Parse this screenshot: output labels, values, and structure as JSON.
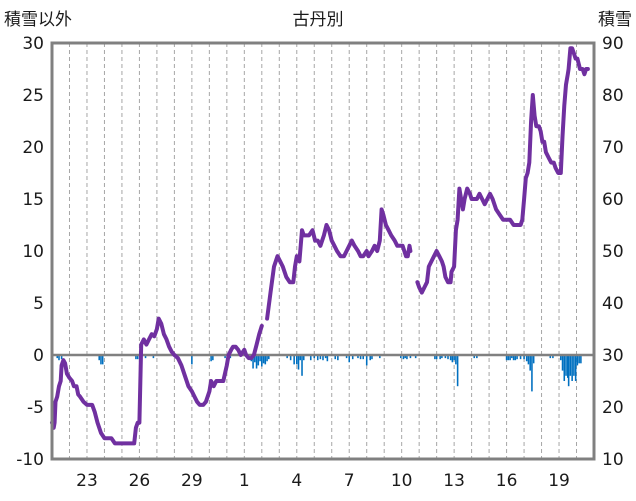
{
  "chart_data": {
    "type": "line",
    "title": "古丹別",
    "left_axis_label": "積雪以外",
    "right_axis_label": "積雪",
    "left_ylim": [
      -10,
      30
    ],
    "left_ticks": [
      30,
      25,
      20,
      15,
      10,
      5,
      0,
      -5,
      -10
    ],
    "right_ylim": [
      10,
      90
    ],
    "right_ticks": [
      90,
      80,
      70,
      60,
      50,
      40,
      30,
      20,
      10
    ],
    "x_range": [
      0,
      31
    ],
    "x_ticks": [
      {
        "x": 2,
        "label": "23"
      },
      {
        "x": 5,
        "label": "26"
      },
      {
        "x": 8,
        "label": "29"
      },
      {
        "x": 11,
        "label": "1"
      },
      {
        "x": 14,
        "label": "4"
      },
      {
        "x": 17,
        "label": "7"
      },
      {
        "x": 20,
        "label": "10"
      },
      {
        "x": 23,
        "label": "13"
      },
      {
        "x": 26,
        "label": "16"
      },
      {
        "x": 29,
        "label": "19"
      }
    ],
    "grid": "vertical-dashed",
    "colors": {
      "line": "#7030a0",
      "bars": "#0070c0",
      "zero_line": "#808080",
      "frame": "#808080"
    },
    "series": [
      {
        "axis": "left",
        "points": [
          [
            0.0,
            -6.5
          ],
          [
            0.1,
            -7.0
          ],
          [
            0.15,
            -6.5
          ],
          [
            0.2,
            -4.5
          ],
          [
            0.3,
            -4.0
          ],
          [
            0.4,
            -3.0
          ],
          [
            0.5,
            -2.5
          ],
          [
            0.55,
            -1.0
          ],
          [
            0.65,
            -0.5
          ],
          [
            0.75,
            -0.8
          ],
          [
            0.85,
            -1.8
          ],
          [
            1.0,
            -2.2
          ],
          [
            1.15,
            -2.5
          ],
          [
            1.25,
            -3.0
          ],
          [
            1.4,
            -3.0
          ],
          [
            1.5,
            -3.8
          ],
          [
            1.6,
            -4.0
          ],
          [
            1.8,
            -4.5
          ],
          [
            2.0,
            -4.8
          ],
          [
            2.3,
            -4.8
          ],
          [
            2.45,
            -5.5
          ],
          [
            2.6,
            -6.5
          ],
          [
            2.8,
            -7.5
          ],
          [
            3.0,
            -8.0
          ],
          [
            3.4,
            -8.0
          ],
          [
            3.6,
            -8.5
          ],
          [
            4.0,
            -8.5
          ],
          [
            4.4,
            -8.5
          ],
          [
            4.7,
            -8.5
          ],
          [
            4.8,
            -7.0
          ],
          [
            4.9,
            -6.5
          ],
          [
            5.0,
            -6.5
          ],
          [
            5.1,
            1.0
          ],
          [
            5.25,
            1.5
          ],
          [
            5.4,
            1.0
          ],
          [
            5.55,
            1.5
          ],
          [
            5.7,
            2.0
          ],
          [
            5.85,
            1.8
          ],
          [
            6.0,
            2.5
          ],
          [
            6.1,
            3.5
          ],
          [
            6.25,
            3.0
          ],
          [
            6.4,
            2.0
          ],
          [
            6.55,
            1.5
          ],
          [
            6.7,
            0.8
          ],
          [
            6.85,
            0.3
          ],
          [
            7.0,
            0.0
          ],
          [
            7.2,
            -0.3
          ],
          [
            7.4,
            -1.0
          ],
          [
            7.6,
            -2.0
          ],
          [
            7.8,
            -3.0
          ],
          [
            8.0,
            -3.5
          ],
          [
            8.15,
            -4.0
          ],
          [
            8.3,
            -4.5
          ],
          [
            8.45,
            -4.8
          ],
          [
            8.65,
            -4.8
          ],
          [
            8.8,
            -4.5
          ],
          [
            9.0,
            -3.5
          ],
          [
            9.1,
            -2.5
          ],
          [
            9.25,
            -3.0
          ],
          [
            9.4,
            -2.5
          ],
          [
            9.6,
            -2.5
          ],
          [
            9.8,
            -2.5
          ],
          [
            10.0,
            -1.0
          ],
          [
            10.1,
            0.0
          ],
          [
            10.25,
            0.5
          ],
          [
            10.35,
            0.8
          ],
          [
            10.5,
            0.8
          ],
          [
            10.65,
            0.5
          ],
          [
            10.8,
            0.0
          ],
          [
            11.0,
            0.5
          ],
          [
            11.1,
            0.0
          ],
          [
            11.25,
            -0.3
          ],
          [
            11.4,
            -0.3
          ],
          [
            11.55,
            0.0
          ],
          [
            11.7,
            1.0
          ],
          [
            11.85,
            2.0
          ],
          [
            12.0,
            2.8
          ]
        ]
      },
      {
        "axis": "left",
        "points": [
          [
            12.3,
            3.5
          ],
          [
            12.5,
            6.0
          ],
          [
            12.7,
            8.5
          ],
          [
            12.9,
            9.5
          ],
          [
            13.05,
            9.0
          ],
          [
            13.2,
            8.5
          ],
          [
            13.4,
            7.5
          ],
          [
            13.6,
            7.0
          ],
          [
            13.8,
            7.0
          ],
          [
            13.9,
            8.5
          ],
          [
            14.0,
            9.5
          ],
          [
            14.15,
            9.0
          ],
          [
            14.3,
            12.0
          ],
          [
            14.4,
            11.5
          ],
          [
            14.55,
            11.5
          ],
          [
            14.7,
            11.5
          ],
          [
            14.9,
            12.0
          ],
          [
            15.05,
            11.0
          ],
          [
            15.2,
            11.0
          ],
          [
            15.35,
            10.5
          ],
          [
            15.55,
            11.5
          ],
          [
            15.7,
            12.5
          ],
          [
            15.85,
            12.0
          ],
          [
            16.0,
            11.0
          ],
          [
            16.15,
            10.5
          ],
          [
            16.3,
            10.0
          ],
          [
            16.5,
            9.5
          ],
          [
            16.7,
            9.5
          ],
          [
            16.85,
            10.0
          ],
          [
            17.0,
            10.5
          ],
          [
            17.15,
            11.0
          ],
          [
            17.3,
            10.5
          ],
          [
            17.5,
            10.0
          ],
          [
            17.65,
            9.5
          ],
          [
            17.8,
            9.5
          ],
          [
            18.0,
            10.0
          ],
          [
            18.1,
            9.5
          ],
          [
            18.3,
            10.0
          ],
          [
            18.45,
            10.5
          ],
          [
            18.6,
            10.0
          ],
          [
            18.75,
            11.0
          ],
          [
            18.85,
            14.0
          ],
          [
            18.95,
            13.5
          ],
          [
            19.1,
            12.5
          ],
          [
            19.25,
            12.0
          ],
          [
            19.4,
            11.5
          ],
          [
            19.6,
            11.0
          ],
          [
            19.75,
            10.5
          ],
          [
            19.9,
            10.5
          ],
          [
            20.05,
            10.5
          ],
          [
            20.15,
            10.0
          ],
          [
            20.25,
            9.5
          ],
          [
            20.35,
            9.5
          ],
          [
            20.45,
            10.5
          ],
          [
            20.5,
            10.0
          ]
        ]
      },
      {
        "axis": "left",
        "points": [
          [
            20.9,
            7.0
          ],
          [
            21.0,
            6.5
          ],
          [
            21.15,
            6.0
          ],
          [
            21.3,
            6.5
          ],
          [
            21.45,
            7.0
          ],
          [
            21.55,
            8.5
          ],
          [
            21.7,
            9.0
          ],
          [
            21.85,
            9.5
          ],
          [
            22.0,
            10.0
          ],
          [
            22.15,
            9.5
          ],
          [
            22.3,
            9.0
          ],
          [
            22.4,
            8.5
          ],
          [
            22.5,
            7.5
          ],
          [
            22.65,
            7.0
          ],
          [
            22.8,
            7.0
          ],
          [
            22.85,
            8.0
          ],
          [
            23.0,
            8.5
          ],
          [
            23.1,
            12.0
          ],
          [
            23.2,
            13.0
          ],
          [
            23.3,
            16.0
          ],
          [
            23.4,
            15.0
          ],
          [
            23.5,
            14.0
          ],
          [
            23.6,
            15.0
          ],
          [
            23.75,
            16.0
          ],
          [
            23.9,
            15.5
          ],
          [
            24.0,
            15.0
          ],
          [
            24.15,
            15.0
          ],
          [
            24.3,
            15.0
          ],
          [
            24.45,
            15.5
          ],
          [
            24.6,
            15.0
          ],
          [
            24.75,
            14.5
          ],
          [
            24.9,
            15.0
          ],
          [
            25.05,
            15.5
          ],
          [
            25.2,
            15.0
          ],
          [
            25.4,
            14.0
          ],
          [
            25.6,
            13.5
          ],
          [
            25.8,
            13.0
          ],
          [
            26.0,
            13.0
          ],
          [
            26.2,
            13.0
          ],
          [
            26.4,
            12.5
          ],
          [
            26.6,
            12.5
          ],
          [
            26.8,
            12.5
          ],
          [
            26.9,
            13.0
          ],
          [
            27.0,
            15.0
          ],
          [
            27.1,
            17.0
          ],
          [
            27.2,
            17.5
          ],
          [
            27.3,
            18.5
          ],
          [
            27.4,
            22.5
          ],
          [
            27.5,
            25.0
          ],
          [
            27.6,
            23.0
          ],
          [
            27.7,
            22.0
          ],
          [
            27.85,
            22.0
          ],
          [
            27.95,
            21.5
          ],
          [
            28.05,
            20.5
          ],
          [
            28.15,
            20.5
          ],
          [
            28.25,
            19.5
          ],
          [
            28.4,
            19.0
          ],
          [
            28.55,
            18.5
          ],
          [
            28.7,
            18.5
          ],
          [
            28.8,
            18.0
          ],
          [
            28.95,
            17.5
          ],
          [
            29.1,
            17.5
          ],
          [
            29.2,
            21.0
          ],
          [
            29.3,
            24.0
          ],
          [
            29.4,
            26.0
          ],
          [
            29.45,
            26.5
          ],
          [
            29.5,
            27.0
          ],
          [
            29.55,
            27.5
          ],
          [
            29.65,
            29.5
          ],
          [
            29.75,
            29.5
          ],
          [
            29.85,
            29.0
          ],
          [
            29.95,
            28.5
          ],
          [
            30.05,
            28.5
          ],
          [
            30.2,
            27.5
          ],
          [
            30.35,
            27.5
          ],
          [
            30.45,
            27.0
          ],
          [
            30.55,
            27.5
          ],
          [
            30.65,
            27.5
          ]
        ]
      }
    ],
    "bars": [
      [
        0.3,
        -0.3
      ],
      [
        0.4,
        -0.5
      ],
      [
        0.55,
        -0.4
      ],
      [
        2.7,
        -0.5
      ],
      [
        2.8,
        -0.9
      ],
      [
        2.9,
        -0.9
      ],
      [
        4.8,
        -0.4
      ],
      [
        4.9,
        -0.4
      ],
      [
        5.35,
        -0.3
      ],
      [
        5.8,
        -0.3
      ],
      [
        7.05,
        -0.2
      ],
      [
        8.0,
        -0.9
      ],
      [
        9.1,
        -0.6
      ],
      [
        9.2,
        -0.5
      ],
      [
        9.9,
        -0.3
      ],
      [
        10.1,
        -0.3
      ],
      [
        10.2,
        -0.3
      ],
      [
        11.4,
        -0.6
      ],
      [
        11.5,
        -1.3
      ],
      [
        11.6,
        -0.7
      ],
      [
        11.7,
        -1.3
      ],
      [
        11.8,
        -1.0
      ],
      [
        11.9,
        -0.6
      ],
      [
        12.0,
        -1.1
      ],
      [
        12.1,
        -0.8
      ],
      [
        12.2,
        -0.9
      ],
      [
        12.3,
        -0.6
      ],
      [
        12.4,
        -0.4
      ],
      [
        13.45,
        -0.3
      ],
      [
        13.65,
        -0.5
      ],
      [
        13.85,
        -0.9
      ],
      [
        14.0,
        -0.9
      ],
      [
        14.1,
        -1.4
      ],
      [
        14.2,
        -0.5
      ],
      [
        14.3,
        -2.0
      ],
      [
        14.4,
        -0.5
      ],
      [
        14.8,
        -0.5
      ],
      [
        15.0,
        -0.3
      ],
      [
        15.2,
        -0.5
      ],
      [
        15.35,
        -0.4
      ],
      [
        15.5,
        -0.5
      ],
      [
        15.65,
        -0.3
      ],
      [
        15.75,
        -0.6
      ],
      [
        16.2,
        -0.4
      ],
      [
        16.35,
        -0.5
      ],
      [
        16.85,
        -0.3
      ],
      [
        17.0,
        -0.7
      ],
      [
        17.2,
        -0.4
      ],
      [
        17.5,
        -0.3
      ],
      [
        17.65,
        -0.4
      ],
      [
        17.8,
        -0.4
      ],
      [
        18.0,
        -1.0
      ],
      [
        18.2,
        -0.5
      ],
      [
        18.3,
        -0.4
      ],
      [
        18.75,
        -0.3
      ],
      [
        19.95,
        -0.3
      ],
      [
        20.1,
        -0.4
      ],
      [
        20.2,
        -0.3
      ],
      [
        20.3,
        -0.4
      ],
      [
        20.5,
        -0.3
      ],
      [
        20.8,
        -0.3
      ],
      [
        21.9,
        -0.4
      ],
      [
        22.0,
        -0.4
      ],
      [
        22.2,
        -0.4
      ],
      [
        22.3,
        -0.3
      ],
      [
        22.5,
        -0.3
      ],
      [
        22.65,
        -0.4
      ],
      [
        22.8,
        -0.5
      ],
      [
        22.9,
        -0.7
      ],
      [
        23.0,
        -0.5
      ],
      [
        23.1,
        -0.9
      ],
      [
        23.2,
        -3.0
      ],
      [
        24.15,
        -0.3
      ],
      [
        24.3,
        -0.3
      ],
      [
        26.0,
        -0.5
      ],
      [
        26.1,
        -0.5
      ],
      [
        26.2,
        -0.5
      ],
      [
        26.3,
        -0.3
      ],
      [
        26.4,
        -0.5
      ],
      [
        26.5,
        -0.5
      ],
      [
        26.6,
        -0.4
      ],
      [
        26.8,
        -0.4
      ],
      [
        27.0,
        -0.4
      ],
      [
        27.15,
        -0.6
      ],
      [
        27.25,
        -0.9
      ],
      [
        27.35,
        -1.5
      ],
      [
        27.45,
        -3.5
      ],
      [
        27.55,
        -0.8
      ],
      [
        28.5,
        -0.3
      ],
      [
        28.65,
        -0.3
      ],
      [
        29.1,
        -0.5
      ],
      [
        29.2,
        -1.5
      ],
      [
        29.3,
        -2.5
      ],
      [
        29.4,
        -2.0
      ],
      [
        29.5,
        -2.2
      ],
      [
        29.55,
        -3.0
      ],
      [
        29.65,
        -2.0
      ],
      [
        29.75,
        -2.5
      ],
      [
        29.85,
        -2.0
      ],
      [
        29.95,
        -2.5
      ],
      [
        30.05,
        -1.0
      ],
      [
        30.15,
        -0.8
      ],
      [
        30.25,
        -0.8
      ]
    ]
  }
}
